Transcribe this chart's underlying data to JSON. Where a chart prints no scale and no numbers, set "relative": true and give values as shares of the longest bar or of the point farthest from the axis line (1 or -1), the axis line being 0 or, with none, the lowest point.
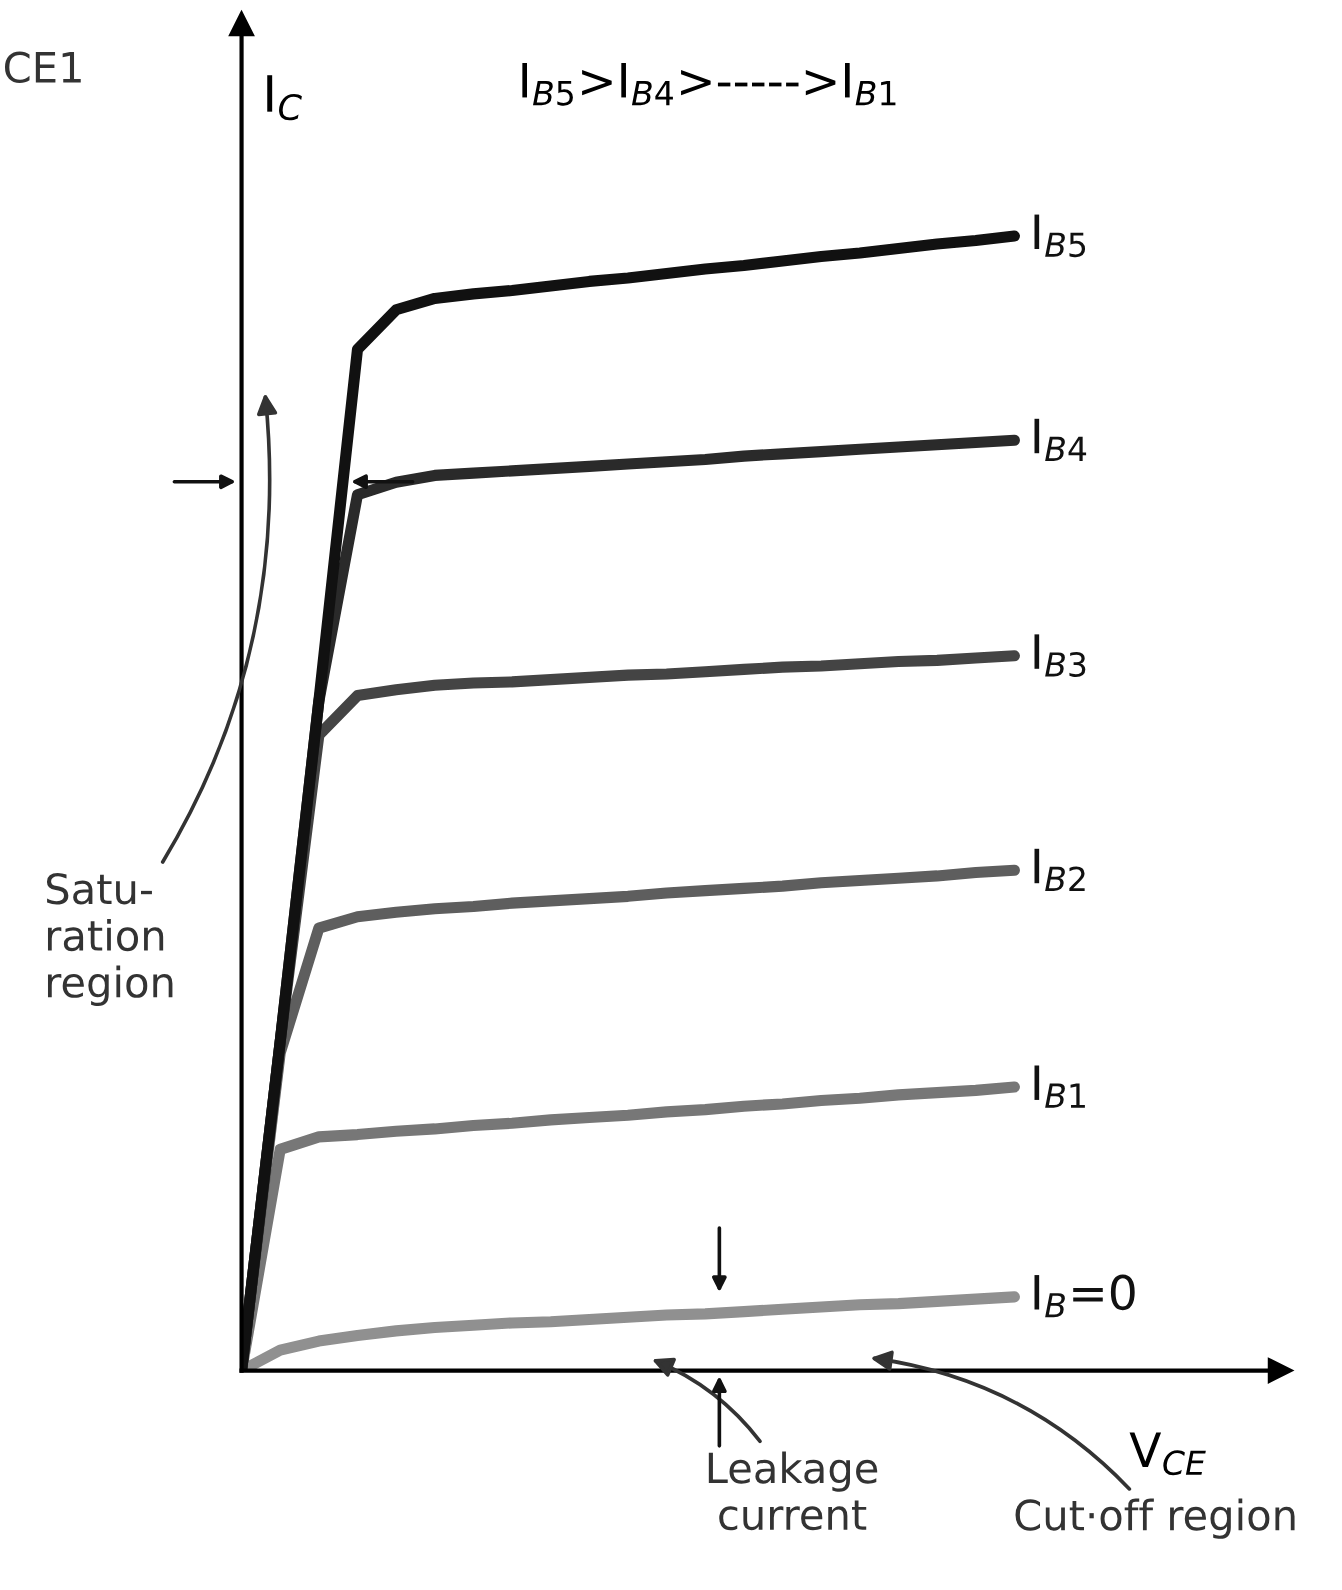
{
  "chart_data": {
    "type": "line",
    "relative": true,
    "title": "I$_{B5}$>I$_{B4}$>----->I$_{B1}$",
    "ylabel": "I$_{C}$",
    "xlabel": "V$_{CE}$",
    "marker": "none",
    "line_style": "solid",
    "grid": false,
    "annotations": [
      "CE1",
      "Satu-\nration\nregion",
      "Leakage\ncurrent",
      "Cut·off region"
    ],
    "categories": [
      null,
      null,
      null,
      null,
      null,
      null,
      null,
      null,
      null,
      null,
      null,
      null,
      null,
      null,
      null,
      null,
      null,
      null,
      null,
      null,
      null
    ],
    "series": [
      {
        "name": "I$_{B5}$",
        "color": "#111111",
        "values": [
          0,
          0.29,
          0.59,
          0.9,
          0.935,
          0.945,
          0.949,
          0.952,
          0.956,
          0.96,
          0.963,
          0.967,
          0.971,
          0.974,
          0.978,
          0.982,
          0.985,
          0.989,
          0.993,
          0.996,
          1.0
        ]
      },
      {
        "name": "I$_{B4}$",
        "color": "#2a2a2a",
        "values": [
          0,
          0.29,
          0.59,
          0.772,
          0.783,
          0.789,
          0.791,
          0.793,
          0.795,
          0.797,
          0.799,
          0.801,
          0.803,
          0.806,
          0.808,
          0.81,
          0.812,
          0.814,
          0.816,
          0.818,
          0.82
        ]
      },
      {
        "name": "I$_{B3}$",
        "color": "#444444",
        "values": [
          0,
          0.29,
          0.56,
          0.595,
          0.6,
          0.604,
          0.606,
          0.607,
          0.609,
          0.611,
          0.613,
          0.614,
          0.616,
          0.618,
          0.62,
          0.621,
          0.623,
          0.625,
          0.626,
          0.628,
          0.63
        ]
      },
      {
        "name": "I$_{B2}$",
        "color": "#5e5e5e",
        "values": [
          0,
          0.28,
          0.39,
          0.4,
          0.404,
          0.407,
          0.409,
          0.412,
          0.414,
          0.416,
          0.418,
          0.421,
          0.423,
          0.425,
          0.427,
          0.43,
          0.432,
          0.434,
          0.436,
          0.439,
          0.441
        ]
      },
      {
        "name": "I$_{B1}$",
        "color": "#777777",
        "values": [
          0,
          0.195,
          0.206,
          0.208,
          0.211,
          0.213,
          0.216,
          0.218,
          0.221,
          0.223,
          0.225,
          0.228,
          0.23,
          0.233,
          0.235,
          0.238,
          0.24,
          0.243,
          0.245,
          0.247,
          0.25
        ]
      },
      {
        "name": "I$_{B}$=0",
        "color": "#909090",
        "values": [
          0,
          0.018,
          0.026,
          0.031,
          0.035,
          0.038,
          0.04,
          0.042,
          0.043,
          0.045,
          0.047,
          0.049,
          0.05,
          0.052,
          0.054,
          0.056,
          0.058,
          0.059,
          0.061,
          0.063,
          0.065
        ]
      }
    ]
  }
}
